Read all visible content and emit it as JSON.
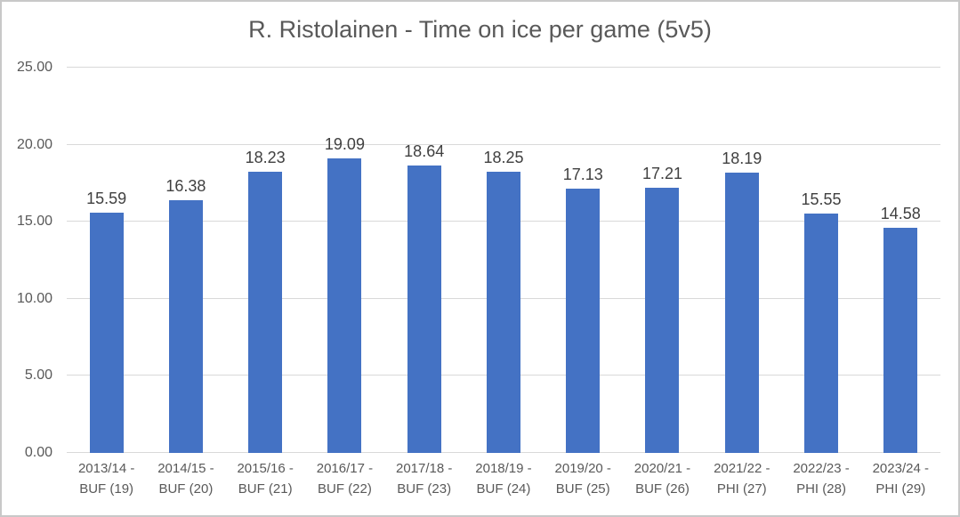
{
  "chart_data": {
    "type": "bar",
    "title": "R. Ristolainen - Time on ice per game (5v5)",
    "xlabel": "",
    "ylabel": "",
    "categories": [
      "2013/14 - BUF (19)",
      "2014/15 - BUF (20)",
      "2015/16 - BUF (21)",
      "2016/17 - BUF (22)",
      "2017/18 - BUF (23)",
      "2018/19 - BUF (24)",
      "2019/20 - BUF (25)",
      "2020/21 - BUF (26)",
      "2021/22 - PHI (27)",
      "2022/23 - PHI (28)",
      "2023/24 - PHI (29)"
    ],
    "category_lines": [
      [
        "2013/14 -",
        "BUF (19)"
      ],
      [
        "2014/15 -",
        "BUF (20)"
      ],
      [
        "2015/16 -",
        "BUF (21)"
      ],
      [
        "2016/17 -",
        "BUF (22)"
      ],
      [
        "2017/18 -",
        "BUF (23)"
      ],
      [
        "2018/19 -",
        "BUF (24)"
      ],
      [
        "2019/20 -",
        "BUF (25)"
      ],
      [
        "2020/21 -",
        "BUF (26)"
      ],
      [
        "2021/22 -",
        "PHI (27)"
      ],
      [
        "2022/23 -",
        "PHI (28)"
      ],
      [
        "2023/24 -",
        "PHI (29)"
      ]
    ],
    "values": [
      15.59,
      16.38,
      18.23,
      19.09,
      18.64,
      18.25,
      17.13,
      17.21,
      18.19,
      15.55,
      14.58
    ],
    "value_labels": [
      "15.59",
      "16.38",
      "18.23",
      "19.09",
      "18.64",
      "18.25",
      "17.13",
      "17.21",
      "18.19",
      "15.55",
      "14.58"
    ],
    "ylim": [
      0,
      25
    ],
    "yticks": [
      0,
      5,
      10,
      15,
      20,
      25
    ],
    "ytick_labels": [
      "0.00",
      "5.00",
      "10.00",
      "15.00",
      "20.00",
      "25.00"
    ],
    "grid": true,
    "legend": false,
    "legend_position": "none",
    "colors": {
      "bar": "#4472C4",
      "grid": "#D9D9D9",
      "axis_line": "#D9D9D9",
      "title_text": "#595959",
      "tick_text": "#595959",
      "value_label_text": "#404040",
      "frame_border": "#C8C8C8",
      "background": "#FFFFFF"
    }
  }
}
